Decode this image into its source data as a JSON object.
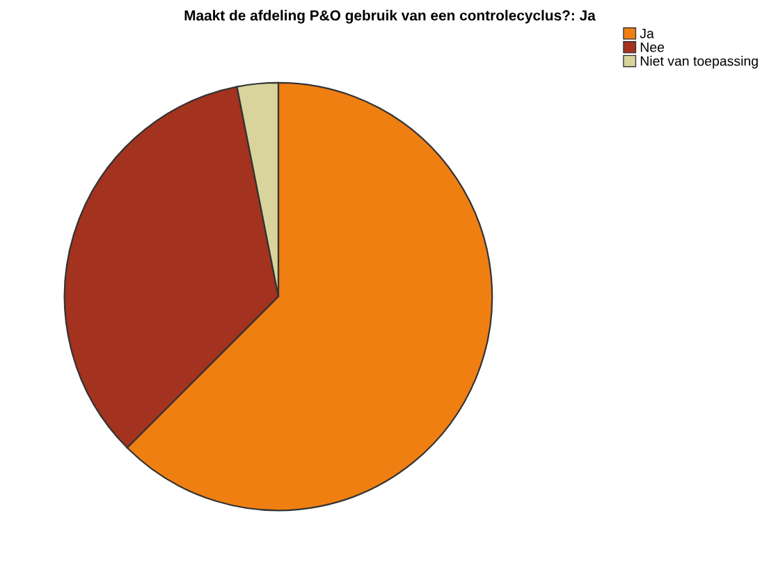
{
  "chart_data": {
    "type": "pie",
    "title": "Maakt de afdeling P&O gebruik van een controlecyclus?: Ja",
    "categories": [
      "Ja",
      "Nee",
      "Niet van toepassing"
    ],
    "values": [
      62.5,
      34.4,
      3.1
    ],
    "colors": [
      "#f07f12",
      "#a3321f",
      "#d8d49c"
    ],
    "legend": "top right"
  }
}
